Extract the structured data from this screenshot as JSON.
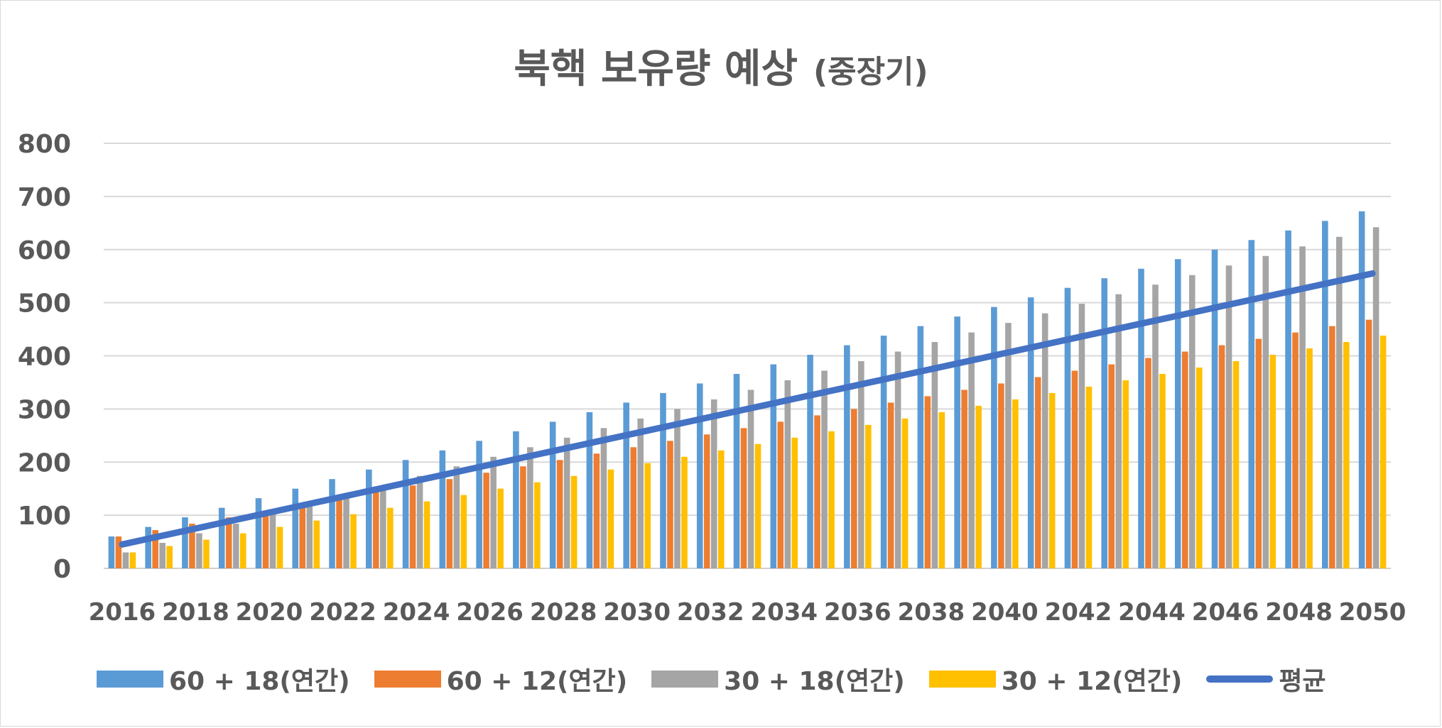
{
  "title": "북핵 보유량 예상",
  "subtitle": "(중장기)",
  "chart_data": {
    "type": "bar",
    "title": "북핵 보유량 예상",
    "subtitle": "(중장기)",
    "xlabel": "",
    "ylabel": "",
    "ylim": [
      0,
      800
    ],
    "yticks": [
      0,
      100,
      200,
      300,
      400,
      500,
      600,
      700,
      800
    ],
    "grid": true,
    "legend_position": "bottom",
    "categories": [
      "2016",
      "2017",
      "2018",
      "2019",
      "2020",
      "2021",
      "2022",
      "2023",
      "2024",
      "2025",
      "2026",
      "2027",
      "2028",
      "2029",
      "2030",
      "2031",
      "2032",
      "2033",
      "2034",
      "2035",
      "2036",
      "2037",
      "2038",
      "2039",
      "2040",
      "2041",
      "2042",
      "2043",
      "2044",
      "2045",
      "2046",
      "2047",
      "2048",
      "2049",
      "2050"
    ],
    "xtick_labels": [
      "2016",
      "2018",
      "2020",
      "2022",
      "2024",
      "2026",
      "2028",
      "2030",
      "2032",
      "2034",
      "2036",
      "2038",
      "2040",
      "2042",
      "2044",
      "2046",
      "2048",
      "2050"
    ],
    "series": [
      {
        "name": "60 + 18(연간)",
        "type": "bar",
        "color": "#5B9BD5",
        "values": [
          60,
          78,
          96,
          114,
          132,
          150,
          168,
          186,
          204,
          222,
          240,
          258,
          276,
          294,
          312,
          330,
          348,
          366,
          384,
          402,
          420,
          438,
          456,
          474,
          492,
          510,
          528,
          546,
          564,
          582,
          600,
          618,
          636,
          654,
          672
        ]
      },
      {
        "name": "60 + 12(연간)",
        "type": "bar",
        "color": "#ED7D31",
        "values": [
          60,
          72,
          84,
          96,
          108,
          120,
          132,
          144,
          156,
          168,
          180,
          192,
          204,
          216,
          228,
          240,
          252,
          264,
          276,
          288,
          300,
          312,
          324,
          336,
          348,
          360,
          372,
          384,
          396,
          408,
          420,
          432,
          444,
          456,
          468
        ]
      },
      {
        "name": "30 + 18(연간)",
        "type": "bar",
        "color": "#A5A5A5",
        "values": [
          30,
          48,
          66,
          84,
          102,
          120,
          138,
          156,
          174,
          192,
          210,
          228,
          246,
          264,
          282,
          300,
          318,
          336,
          354,
          372,
          390,
          408,
          426,
          444,
          462,
          480,
          498,
          516,
          534,
          552,
          570,
          588,
          606,
          624,
          642
        ]
      },
      {
        "name": "30 + 12(연간)",
        "type": "bar",
        "color": "#FFC000",
        "values": [
          30,
          42,
          54,
          66,
          78,
          90,
          102,
          114,
          126,
          138,
          150,
          162,
          174,
          186,
          198,
          210,
          222,
          234,
          246,
          258,
          270,
          282,
          294,
          306,
          318,
          330,
          342,
          354,
          366,
          378,
          390,
          402,
          414,
          426,
          438
        ]
      },
      {
        "name": "평균",
        "type": "line",
        "color": "#4472C4",
        "values": [
          45,
          60,
          75,
          90,
          105,
          120,
          135,
          150,
          165,
          180,
          195,
          210,
          225,
          240,
          255,
          270,
          285,
          300,
          315,
          330,
          345,
          360,
          375,
          390,
          405,
          420,
          435,
          450,
          465,
          480,
          495,
          510,
          525,
          540,
          555
        ]
      }
    ]
  }
}
